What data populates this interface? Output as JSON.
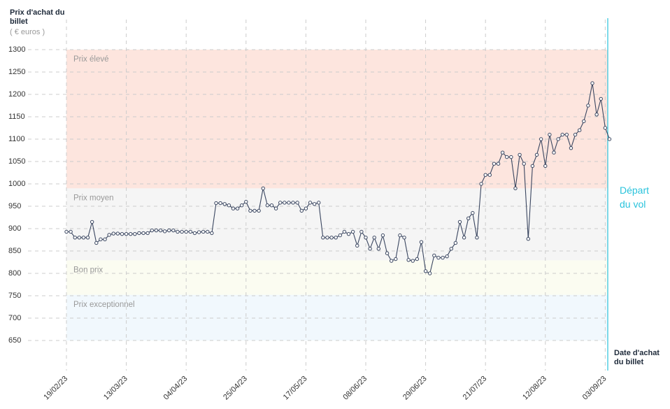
{
  "chart_data": {
    "type": "line",
    "y_label": "Prix d'achat du billet",
    "y_unit": "( € euros )",
    "x_label": "Date d'achat du billet",
    "annotation": "Départ du vol",
    "annotation_color": "#29c3dc",
    "color": "#3a4660",
    "ylim": [
      650,
      1300
    ],
    "yticks": [
      1300,
      1250,
      1200,
      1150,
      1100,
      1050,
      1000,
      950,
      900,
      850,
      800,
      750,
      700,
      650
    ],
    "grid": true,
    "bands": [
      {
        "name": "Prix élevé",
        "from": 990,
        "to": 1300,
        "color": "#fde5de"
      },
      {
        "name": "Prix moyen",
        "from": 829,
        "to": 990,
        "color": "#f5f5f5"
      },
      {
        "name": "Bon prix",
        "from": 752,
        "to": 829,
        "color": "#fbfcf1"
      },
      {
        "name": "Prix exceptionnel",
        "from": 650,
        "to": 752,
        "color": "#f1f8fd"
      }
    ],
    "categories": [
      "19/02/23",
      null,
      null,
      null,
      null,
      null,
      null,
      null,
      null,
      null,
      null,
      null,
      null,
      null,
      "13/03/23",
      null,
      null,
      null,
      null,
      null,
      null,
      null,
      null,
      null,
      null,
      null,
      null,
      null,
      "04/04/23",
      null,
      null,
      null,
      null,
      null,
      null,
      null,
      null,
      null,
      null,
      null,
      null,
      null,
      "25/04/23",
      null,
      null,
      null,
      null,
      null,
      null,
      null,
      null,
      null,
      null,
      null,
      null,
      null,
      "17/05/23",
      null,
      null,
      null,
      null,
      null,
      null,
      null,
      null,
      null,
      null,
      null,
      null,
      null,
      "08/06/23",
      null,
      null,
      null,
      null,
      null,
      null,
      null,
      null,
      null,
      null,
      null,
      null,
      null,
      "29/06/23",
      null,
      null,
      null,
      null,
      null,
      null,
      null,
      null,
      null,
      null,
      null,
      null,
      null,
      "21/07/23",
      null,
      null,
      null,
      null,
      null,
      null,
      null,
      null,
      null,
      null,
      null,
      null,
      null,
      "12/08/23",
      null,
      null,
      null,
      null,
      null,
      null,
      null,
      null,
      null,
      null,
      null,
      null,
      null,
      "03/09/23",
      null
    ],
    "values": [
      893,
      893,
      880,
      880,
      880,
      880,
      915,
      868,
      876,
      876,
      886,
      889,
      889,
      888,
      888,
      888,
      888,
      890,
      890,
      890,
      896,
      896,
      896,
      894,
      896,
      896,
      893,
      893,
      893,
      893,
      890,
      892,
      893,
      893,
      890,
      957,
      957,
      955,
      952,
      945,
      945,
      952,
      960,
      940,
      940,
      940,
      990,
      952,
      952,
      945,
      958,
      958,
      958,
      958,
      958,
      940,
      945,
      958,
      955,
      958,
      880,
      880,
      880,
      880,
      885,
      893,
      888,
      893,
      862,
      893,
      880,
      855,
      880,
      855,
      885,
      845,
      828,
      832,
      885,
      880,
      830,
      828,
      832,
      870,
      805,
      800,
      840,
      835,
      835,
      838,
      855,
      868,
      915,
      880,
      923,
      935,
      880,
      1000,
      1020,
      1020,
      1045,
      1045,
      1070,
      1060,
      1060,
      990,
      1065,
      1045,
      877,
      1040,
      1065,
      1100,
      1040,
      1110,
      1070,
      1100,
      1110,
      1110,
      1080,
      1110,
      1120,
      1140,
      1175,
      1225,
      1155,
      1190,
      1125,
      1100
    ]
  }
}
